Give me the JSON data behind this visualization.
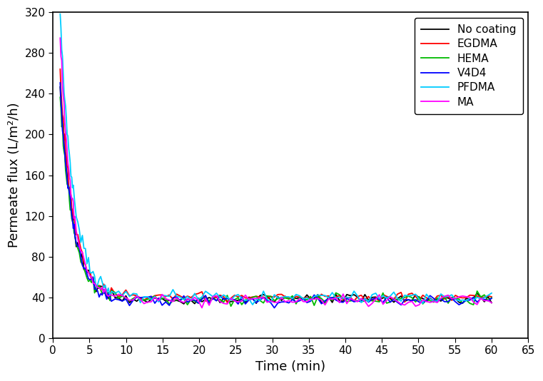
{
  "title": "",
  "xlabel": "Time (min)",
  "ylabel": "Permeate flux (L/m²/h)",
  "xlim": [
    0,
    65
  ],
  "ylim": [
    0,
    320
  ],
  "xticks": [
    0,
    5,
    10,
    15,
    20,
    25,
    30,
    35,
    40,
    45,
    50,
    55,
    60,
    65
  ],
  "yticks": [
    0,
    40,
    80,
    120,
    160,
    200,
    240,
    280,
    320
  ],
  "series": [
    {
      "label": "No coating",
      "color": "#000000"
    },
    {
      "label": "EGDMA",
      "color": "#ff0000"
    },
    {
      "label": "HEMA",
      "color": "#00bb00"
    },
    {
      "label": "V4D4",
      "color": "#0000ff"
    },
    {
      "label": "PFDMA",
      "color": "#00ccff"
    },
    {
      "label": "MA",
      "color": "#ff00ff"
    }
  ],
  "legend_loc": "upper right",
  "linewidth": 1.3,
  "params": [
    [
      240,
      38,
      0.55,
      2.5,
      0
    ],
    [
      258,
      40,
      0.55,
      2.5,
      1
    ],
    [
      238,
      38,
      0.57,
      2.5,
      2
    ],
    [
      244,
      37,
      0.56,
      2.5,
      3
    ],
    [
      318,
      40,
      0.55,
      3.0,
      4
    ],
    [
      293,
      37,
      0.58,
      2.5,
      5
    ]
  ]
}
